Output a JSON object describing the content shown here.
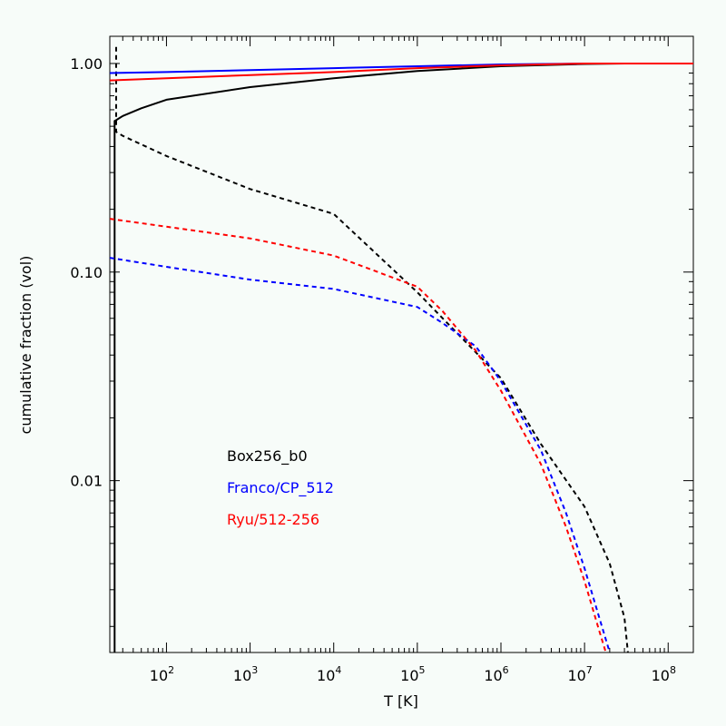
{
  "chart_data": {
    "type": "line",
    "xlabel": "T [K]",
    "ylabel": "cumulative fraction (vol)",
    "xscale": "log",
    "yscale": "log",
    "xlim": [
      21,
      200000000
    ],
    "ylim": [
      0.0015,
      1.35
    ],
    "x_tick_labels": [
      {
        "value": 100,
        "base": "10",
        "exp": "2"
      },
      {
        "value": 1000,
        "base": "10",
        "exp": "3"
      },
      {
        "value": 10000,
        "base": "10",
        "exp": "4"
      },
      {
        "value": 100000,
        "base": "10",
        "exp": "5"
      },
      {
        "value": 1000000,
        "base": "10",
        "exp": "6"
      },
      {
        "value": 10000000,
        "base": "10",
        "exp": "7"
      },
      {
        "value": 100000000,
        "base": "10",
        "exp": "8"
      }
    ],
    "y_tick_labels": [
      {
        "value": 1.0,
        "label": "1.00"
      },
      {
        "value": 0.1,
        "label": "0.10"
      },
      {
        "value": 0.01,
        "label": "0.01"
      }
    ],
    "legend": [
      {
        "label": "Box256_b0",
        "color": "#000000"
      },
      {
        "label": "Franco/CP_512",
        "color": "#0000ff"
      },
      {
        "label": "Ryu/512-256",
        "color": "#ff0000"
      }
    ],
    "series": [
      {
        "color": "#000000",
        "style": "solid",
        "x": [
          24,
          24,
          25,
          30,
          50,
          100,
          1000,
          10000,
          100000,
          1000000,
          10000000,
          30000000,
          200000000
        ],
        "y": [
          0.0015,
          0.53,
          0.535,
          0.56,
          0.61,
          0.67,
          0.77,
          0.85,
          0.92,
          0.97,
          0.995,
          1.0,
          1.0
        ]
      },
      {
        "color": "#000000",
        "style": "dashed",
        "x": [
          25,
          25,
          30,
          100,
          1000,
          10000,
          100000,
          1000000,
          3000000,
          10000000,
          20000000,
          30000000,
          33000000
        ],
        "y": [
          1.2,
          0.47,
          0.45,
          0.36,
          0.25,
          0.19,
          0.08,
          0.031,
          0.015,
          0.0075,
          0.004,
          0.0022,
          0.0015
        ]
      },
      {
        "color": "#0000ff",
        "style": "solid",
        "x": [
          21,
          100,
          1000,
          10000,
          100000,
          1000000,
          10000000,
          30000000,
          200000000
        ],
        "y": [
          0.9,
          0.91,
          0.93,
          0.95,
          0.97,
          0.99,
          1.0,
          1.0,
          1.0
        ]
      },
      {
        "color": "#0000ff",
        "style": "dashed",
        "x": [
          21,
          100,
          1000,
          10000,
          100000,
          200000,
          500000,
          1000000,
          3000000,
          6000000,
          10000000,
          15000000,
          20000000
        ],
        "y": [
          0.117,
          0.106,
          0.092,
          0.083,
          0.068,
          0.057,
          0.044,
          0.03,
          0.014,
          0.007,
          0.0038,
          0.0022,
          0.0015
        ]
      },
      {
        "color": "#ff0000",
        "style": "solid",
        "x": [
          21,
          100,
          1000,
          10000,
          100000,
          1000000,
          10000000,
          30000000,
          200000000
        ],
        "y": [
          0.83,
          0.85,
          0.88,
          0.91,
          0.95,
          0.98,
          1.0,
          1.0,
          1.0
        ]
      },
      {
        "color": "#ff0000",
        "style": "dashed",
        "x": [
          21,
          100,
          1000,
          10000,
          100000,
          200000,
          500000,
          1000000,
          3000000,
          6000000,
          10000000,
          15000000,
          18000000
        ],
        "y": [
          0.18,
          0.165,
          0.145,
          0.12,
          0.085,
          0.065,
          0.042,
          0.027,
          0.012,
          0.006,
          0.0033,
          0.0019,
          0.0015
        ]
      }
    ]
  }
}
